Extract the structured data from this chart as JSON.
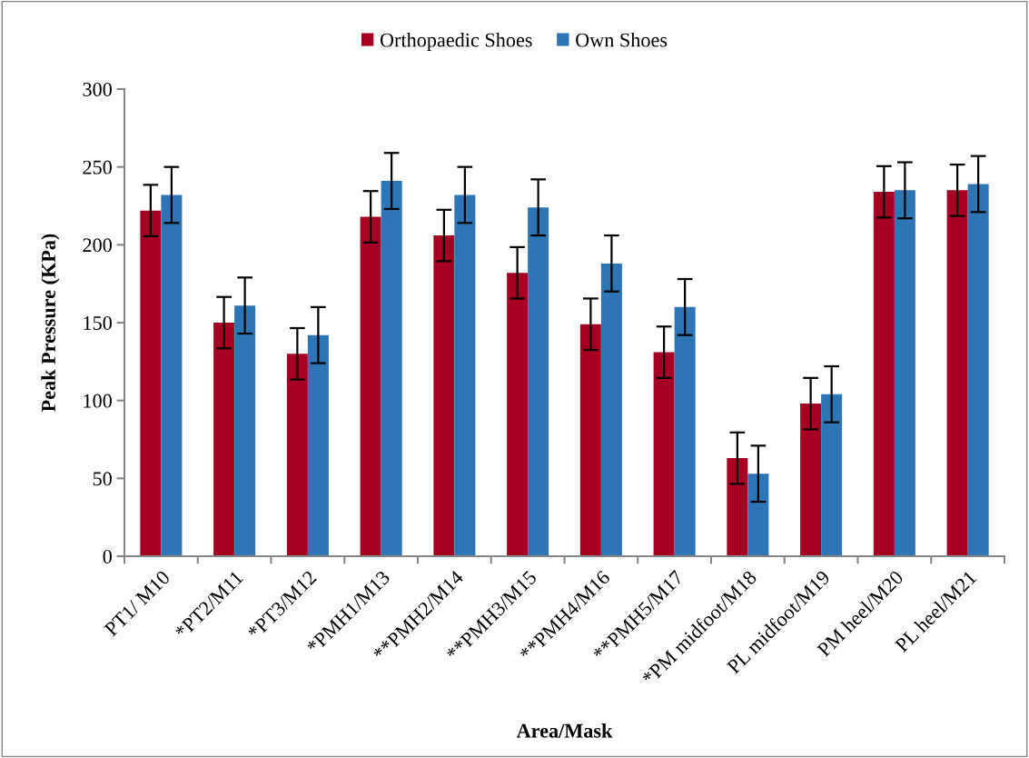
{
  "chart_data": {
    "type": "bar",
    "xlabel": "Area/Mask",
    "ylabel": "Peak Pressure (KPa)",
    "categories": [
      "PT1/ M10",
      "*PT2/M11",
      "*PT3/M12",
      "*PMH1/M13",
      "**PMH2/M14",
      "**PMH3/M15",
      "**PMH4/M16",
      "**PMH5/M17",
      "*PM midfoot/M18",
      "PL midfoot/M19",
      "PM heel/M20",
      "PL heel/M21"
    ],
    "series": [
      {
        "name": "Orthopaedic Shoes",
        "color": "#a50021",
        "values": [
          222,
          150,
          130,
          218,
          206,
          182,
          149,
          131,
          63,
          98,
          234,
          235
        ],
        "errors": [
          16.5,
          16.5,
          16.5,
          16.5,
          16.5,
          16.5,
          16.5,
          16.5,
          16.5,
          16.5,
          16.5,
          16.5
        ]
      },
      {
        "name": "Own Shoes",
        "color": "#2e75b6",
        "values": [
          232,
          161,
          142,
          241,
          232,
          224,
          188,
          160,
          53,
          104,
          235,
          239
        ],
        "errors": [
          18,
          18,
          18,
          18,
          18,
          18,
          18,
          18,
          18,
          18,
          18,
          18
        ]
      }
    ],
    "ylim": [
      0,
      300
    ],
    "yticks": [
      0,
      50,
      100,
      150,
      200,
      250,
      300
    ],
    "legend": "top",
    "grid": false
  }
}
